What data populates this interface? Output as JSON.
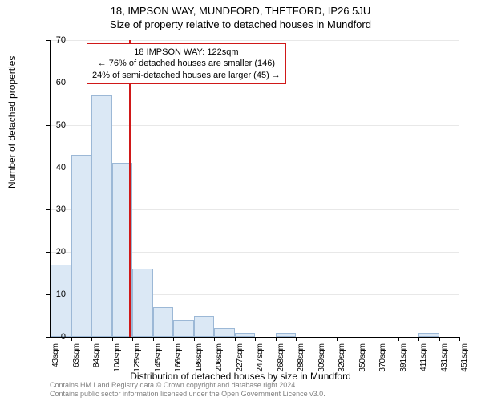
{
  "header": {
    "address": "18, IMPSON WAY, MUNDFORD, THETFORD, IP26 5JU",
    "subtitle": "Size of property relative to detached houses in Mundford"
  },
  "axes": {
    "ylabel": "Number of detached properties",
    "xlabel": "Distribution of detached houses by size in Mundford",
    "ymax": 70,
    "ytick_step": 10,
    "yticks": [
      0,
      10,
      20,
      30,
      40,
      50,
      60,
      70
    ]
  },
  "chart": {
    "type": "histogram",
    "bar_fill": "#dbe8f5",
    "bar_stroke": "#9cb8d6",
    "grid_color": "#e8e8e8",
    "background": "#ffffff",
    "marker_color": "#d01818",
    "x_labels": [
      "43sqm",
      "63sqm",
      "84sqm",
      "104sqm",
      "125sqm",
      "145sqm",
      "166sqm",
      "186sqm",
      "206sqm",
      "227sqm",
      "247sqm",
      "268sqm",
      "288sqm",
      "309sqm",
      "329sqm",
      "350sqm",
      "370sqm",
      "391sqm",
      "411sqm",
      "431sqm",
      "451sqm"
    ],
    "bar_values": [
      17,
      43,
      57,
      41,
      16,
      7,
      4,
      5,
      2,
      1,
      0,
      1,
      0,
      0,
      0,
      0,
      0,
      0,
      1,
      0
    ],
    "marker_x_value": "122sqm",
    "marker_bin_index": 4
  },
  "info_box": {
    "line1": "18 IMPSON WAY: 122sqm",
    "line2": "← 76% of detached houses are smaller (146)",
    "line3": "24% of semi-detached houses are larger (45) →"
  },
  "footer": {
    "line1": "Contains HM Land Registry data © Crown copyright and database right 2024.",
    "line2": "Contains public sector information licensed under the Open Government Licence v3.0."
  }
}
